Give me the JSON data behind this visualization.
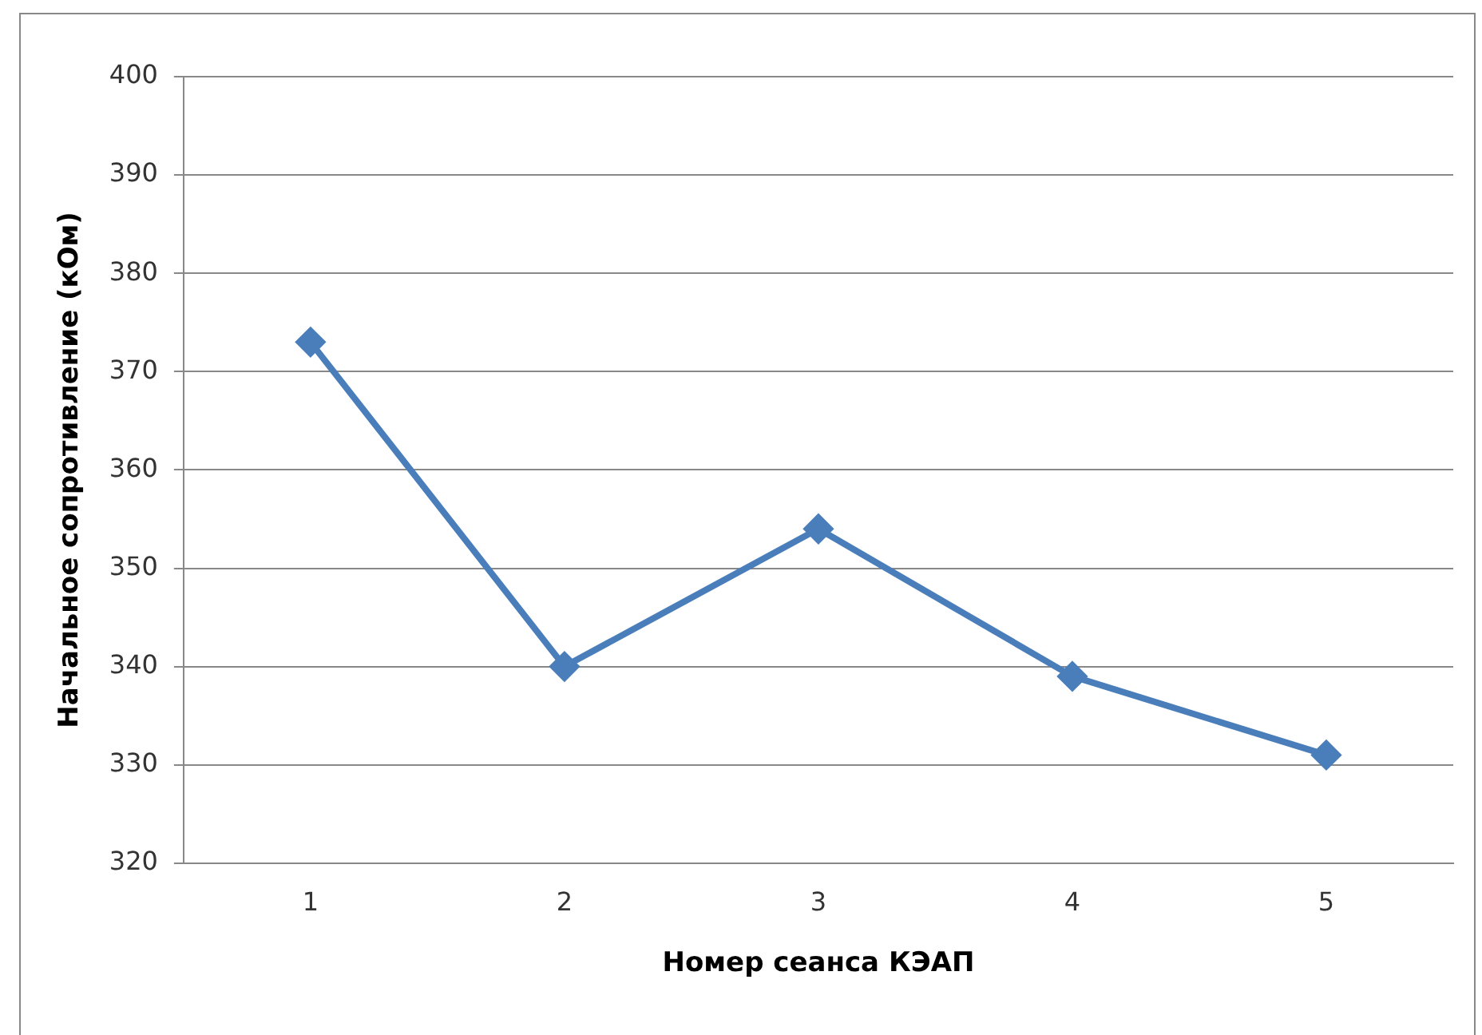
{
  "chart_data": {
    "type": "line",
    "xlabel": "Номер сеанса КЭАП",
    "ylabel": "Начальное сопротивление (кОм)",
    "categories": [
      "1",
      "2",
      "3",
      "4",
      "5"
    ],
    "series": [
      {
        "color": "#4a7ebb",
        "values": [
          373,
          340,
          354,
          339,
          331
        ]
      }
    ],
    "ylim": [
      320,
      400
    ],
    "yticks": [
      320,
      330,
      340,
      350,
      360,
      370,
      380,
      390,
      400
    ],
    "grid": "y",
    "marker": "diamond",
    "line_style": "solid"
  }
}
